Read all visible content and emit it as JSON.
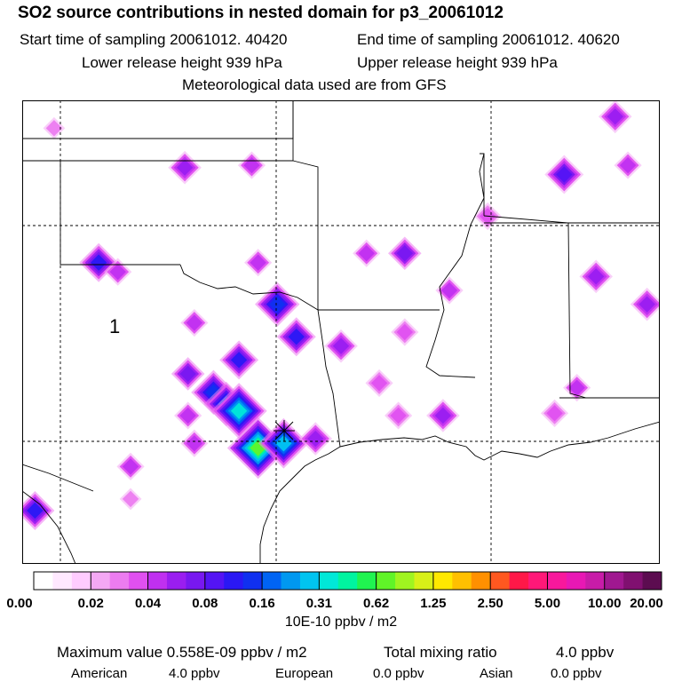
{
  "header": {
    "title": "SO2 source contributions in nested domain for p3_20061012",
    "start_label": "Start time of sampling 20061012. 40420",
    "end_label": "End time of sampling 20061012. 40620",
    "lower_label": "Lower release height  939 hPa",
    "upper_label": "Upper release height  939 hPa",
    "met_label": "Meteorological data used are from GFS"
  },
  "map": {
    "region_label": "1",
    "colors": {
      "land_line": "#000000",
      "grid_line": "#000000",
      "background": "#ffffff"
    },
    "hotspots": [
      {
        "lon": 0.05,
        "lat": 0.06,
        "level": 4
      },
      {
        "lon": 0.255,
        "lat": 0.145,
        "level": 7
      },
      {
        "lon": 0.36,
        "lat": 0.14,
        "level": 6
      },
      {
        "lon": 0.93,
        "lat": 0.035,
        "level": 7
      },
      {
        "lon": 0.85,
        "lat": 0.16,
        "level": 9
      },
      {
        "lon": 0.95,
        "lat": 0.14,
        "level": 6
      },
      {
        "lon": 0.73,
        "lat": 0.25,
        "level": 5
      },
      {
        "lon": 0.12,
        "lat": 0.35,
        "level": 10
      },
      {
        "lon": 0.15,
        "lat": 0.37,
        "level": 6
      },
      {
        "lon": 0.37,
        "lat": 0.35,
        "level": 6
      },
      {
        "lon": 0.54,
        "lat": 0.33,
        "level": 6
      },
      {
        "lon": 0.6,
        "lat": 0.33,
        "level": 8
      },
      {
        "lon": 0.4,
        "lat": 0.44,
        "level": 11
      },
      {
        "lon": 0.67,
        "lat": 0.41,
        "level": 6
      },
      {
        "lon": 0.9,
        "lat": 0.38,
        "level": 7
      },
      {
        "lon": 0.98,
        "lat": 0.44,
        "level": 7
      },
      {
        "lon": 0.27,
        "lat": 0.48,
        "level": 6
      },
      {
        "lon": 0.43,
        "lat": 0.51,
        "level": 10
      },
      {
        "lon": 0.5,
        "lat": 0.53,
        "level": 7
      },
      {
        "lon": 0.6,
        "lat": 0.5,
        "level": 5
      },
      {
        "lon": 0.34,
        "lat": 0.56,
        "level": 10
      },
      {
        "lon": 0.26,
        "lat": 0.59,
        "level": 8
      },
      {
        "lon": 0.3,
        "lat": 0.63,
        "level": 11
      },
      {
        "lon": 0.32,
        "lat": 0.655,
        "level": 12
      },
      {
        "lon": 0.56,
        "lat": 0.61,
        "level": 5
      },
      {
        "lon": 0.87,
        "lat": 0.62,
        "level": 6
      },
      {
        "lon": 0.26,
        "lat": 0.68,
        "level": 6
      },
      {
        "lon": 0.34,
        "lat": 0.67,
        "level": 15
      },
      {
        "lon": 0.59,
        "lat": 0.68,
        "level": 5
      },
      {
        "lon": 0.66,
        "lat": 0.68,
        "level": 7
      },
      {
        "lon": 0.835,
        "lat": 0.675,
        "level": 5
      },
      {
        "lon": 0.37,
        "lat": 0.75,
        "level": 18
      },
      {
        "lon": 0.41,
        "lat": 0.74,
        "level": 14
      },
      {
        "lon": 0.46,
        "lat": 0.73,
        "level": 7
      },
      {
        "lon": 0.27,
        "lat": 0.74,
        "level": 6
      },
      {
        "lon": 0.17,
        "lat": 0.79,
        "level": 6
      },
      {
        "lon": 0.17,
        "lat": 0.86,
        "level": 4
      },
      {
        "lon": 0.02,
        "lat": 0.885,
        "level": 10
      }
    ]
  },
  "legend": {
    "colors": [
      "#ffffff",
      "#ffe8ff",
      "#ffccff",
      "#f4a8f4",
      "#ec7cf0",
      "#e050f0",
      "#c030f0",
      "#9a1ef0",
      "#7818f0",
      "#5414f4",
      "#2a18f4",
      "#1030f0",
      "#0064f4",
      "#0098f0",
      "#00c4f0",
      "#00e8d8",
      "#00f4a0",
      "#20f450",
      "#60f428",
      "#a0f420",
      "#d8f018",
      "#ffe800",
      "#ffc000",
      "#ff9000",
      "#ff5820",
      "#ff1848",
      "#ff1878",
      "#f8189c",
      "#e818b4",
      "#c81ca8",
      "#a01890",
      "#801070",
      "#5c0c50"
    ],
    "tick_labels": [
      "0.00",
      "0.02",
      "0.04",
      "0.08",
      "0.16",
      "0.31",
      "0.62",
      "1.25",
      "2.50",
      "5.00",
      "10.00",
      "20.00"
    ],
    "units": "10E-10 ppbv / m2"
  },
  "footer": {
    "max_value": "Maximum value  0.558E-09 ppbv / m2",
    "total_mixing": "Total mixing ratio",
    "total_value": "4.0 ppbv",
    "american_label": "American",
    "american_value": "4.0 ppbv",
    "european_label": "European",
    "european_value": "0.0 ppbv",
    "asian_label": "Asian",
    "asian_value": "0.0 ppbv"
  }
}
